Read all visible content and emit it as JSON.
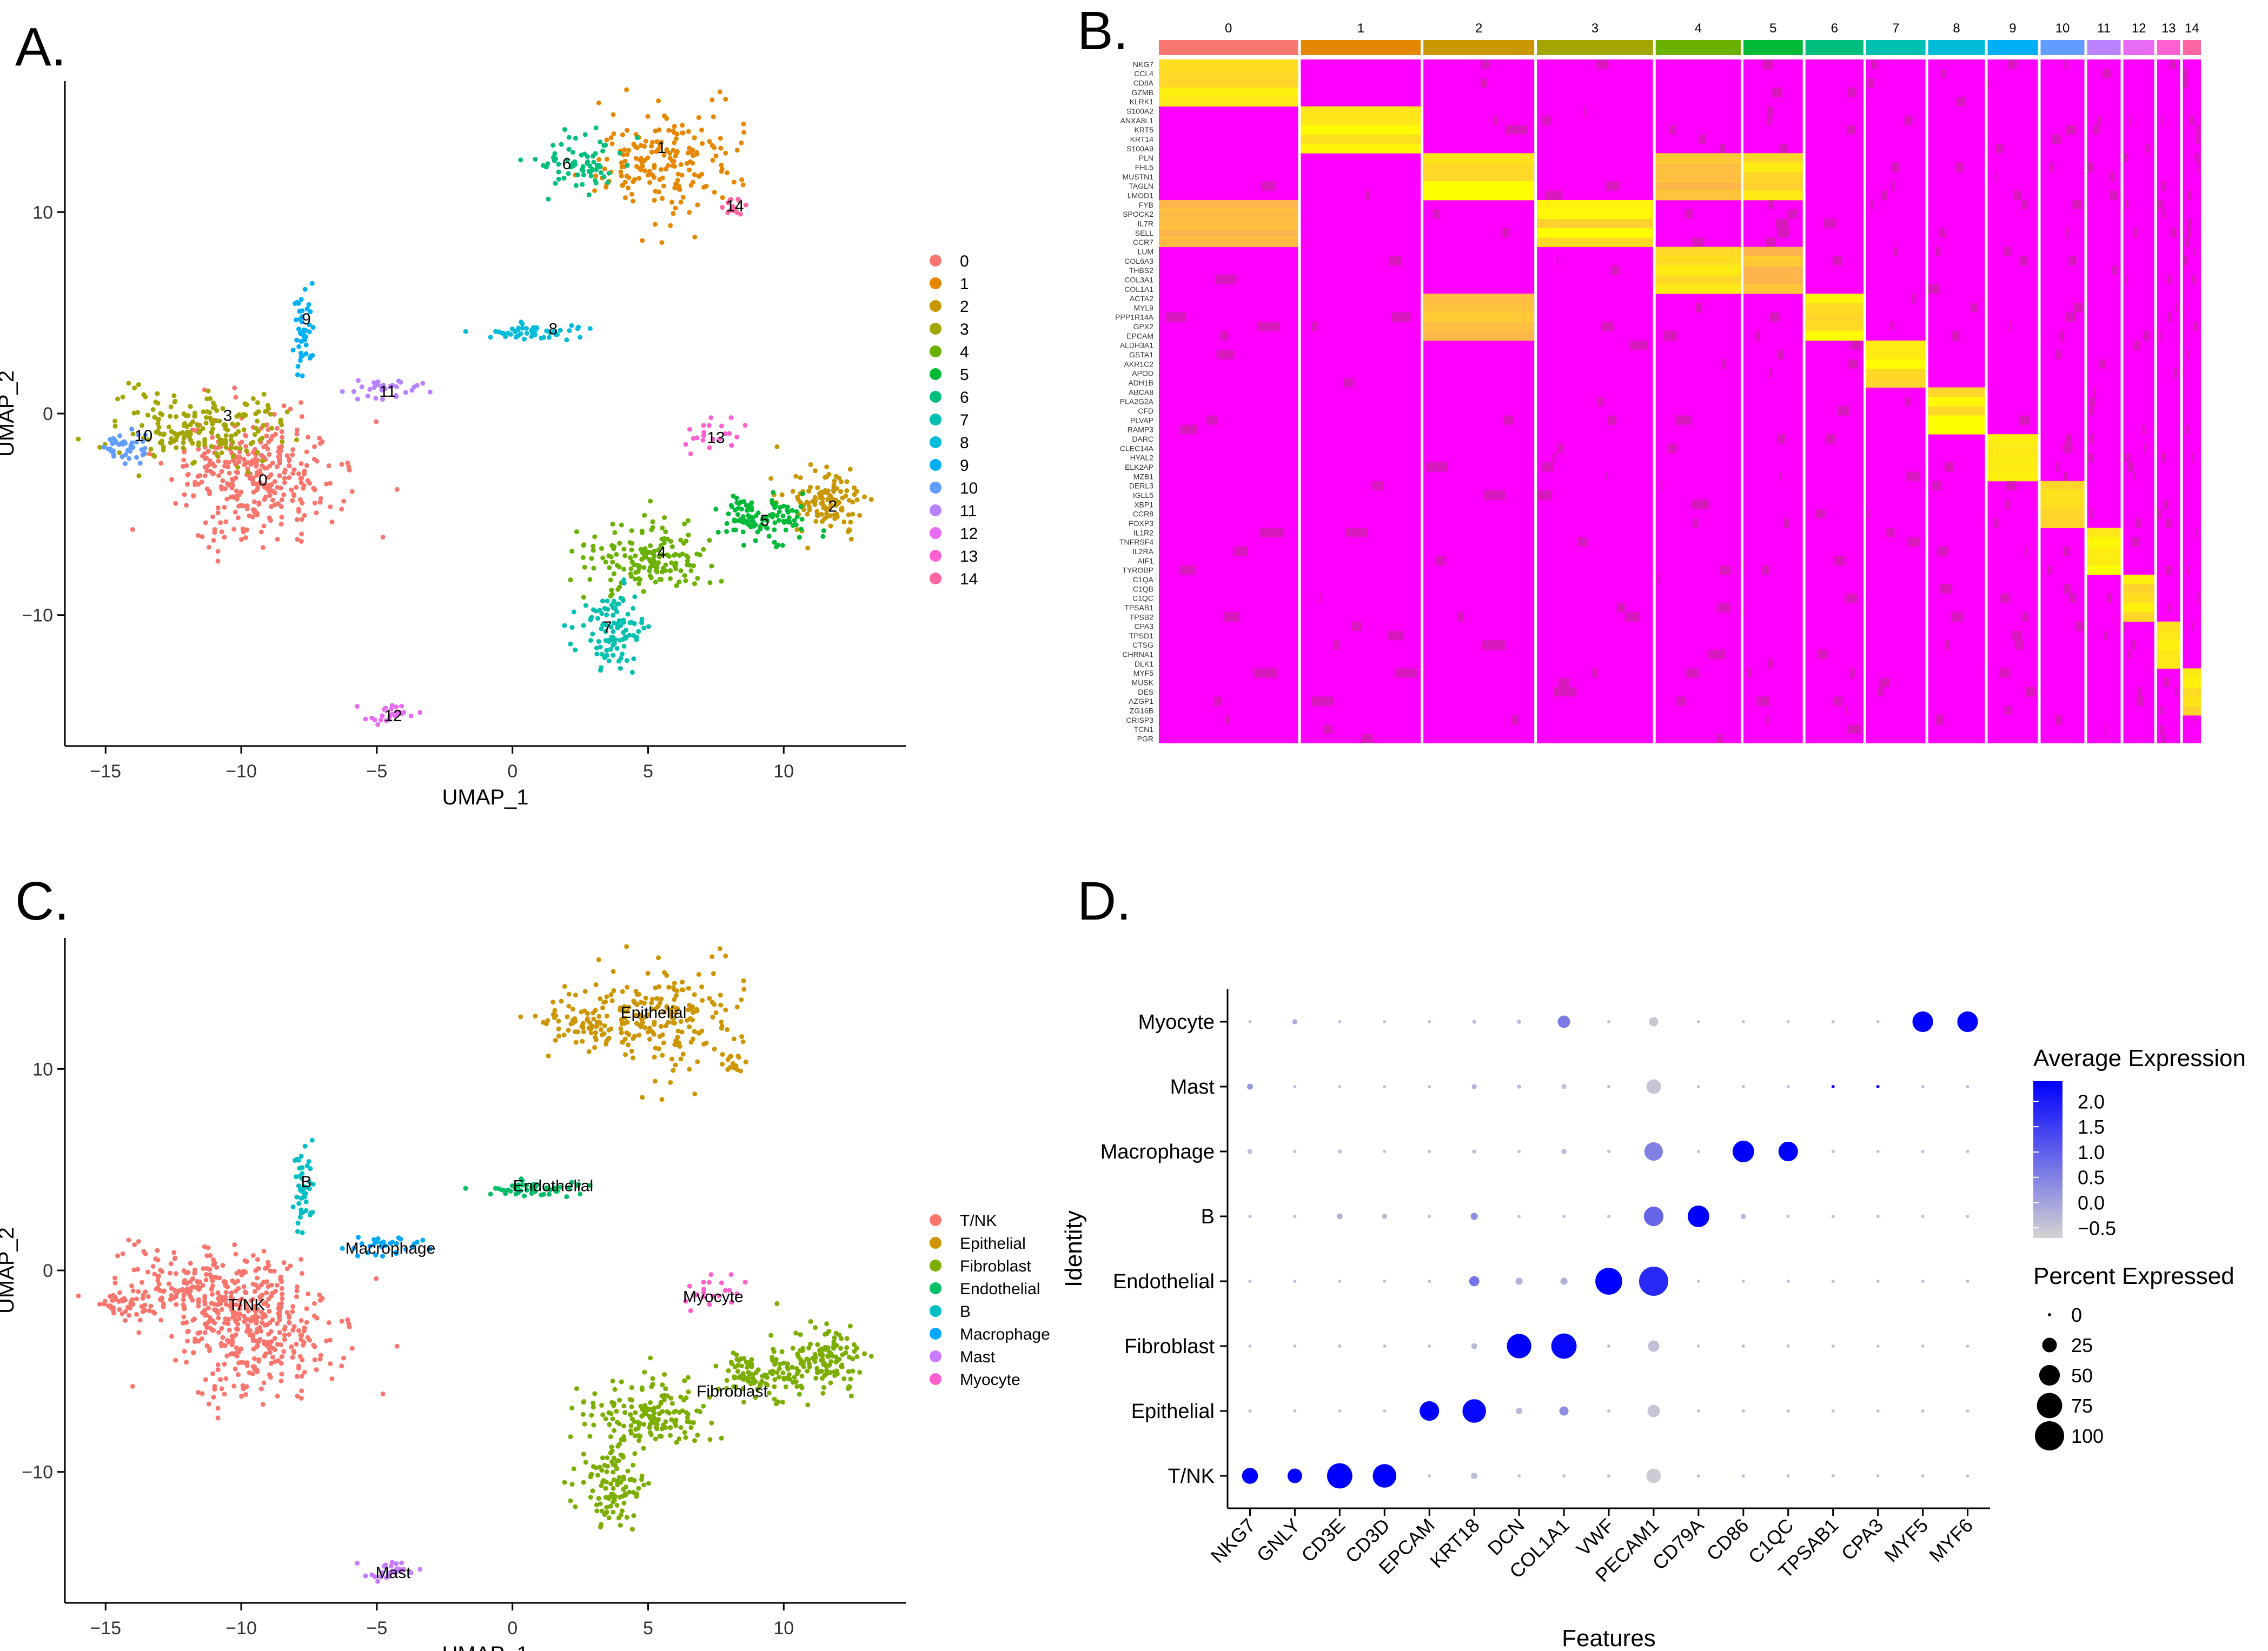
{
  "panel_labels": {
    "a": "A.",
    "b": "B.",
    "c": "C.",
    "d": "D."
  },
  "colors": {
    "clusters": [
      "#F8766D",
      "#E58700",
      "#C99800",
      "#A3A500",
      "#6BB100",
      "#00BA38",
      "#00BF7D",
      "#00C0AF",
      "#00BCD8",
      "#00B0F6",
      "#619CFF",
      "#B983FF",
      "#E76BF3",
      "#FD61D1",
      "#FF67A4"
    ],
    "cell_types": [
      "#F8766D",
      "#CD9600",
      "#7CAE00",
      "#00BE67",
      "#00BFC4",
      "#00A9FF",
      "#C77CFF",
      "#FF61CC"
    ],
    "heatmap_low": "#FF00FF",
    "heatmap_high": "#FFFF00",
    "dot_low": "#D3D3D3",
    "dot_high": "#0000FF"
  },
  "chart_data": [
    {
      "id": "A",
      "type": "scatter",
      "title": "",
      "xlabel": "UMAP_1",
      "ylabel": "UMAP_2",
      "xlim": [
        -16.5,
        14.5
      ],
      "ylim": [
        -16.5,
        16.5
      ],
      "xticks": [
        -15,
        -10,
        -5,
        0,
        5,
        10
      ],
      "yticks": [
        -10,
        0,
        10
      ],
      "legend": {
        "position": "right",
        "labels": [
          "0",
          "1",
          "2",
          "3",
          "4",
          "5",
          "6",
          "7",
          "8",
          "9",
          "10",
          "11",
          "12",
          "13",
          "14"
        ]
      },
      "clusters": [
        {
          "label": "0",
          "center": [
            -9.5,
            -3.2
          ],
          "spread": [
            2.0,
            2.0
          ],
          "n": 340,
          "label_pos": [
            -9.2,
            -3.3
          ]
        },
        {
          "label": "1",
          "center": [
            5.5,
            12.5
          ],
          "spread": [
            1.6,
            1.8
          ],
          "n": 190,
          "label_pos": [
            5.5,
            13.2
          ]
        },
        {
          "label": "2",
          "center": [
            11.5,
            -4.3
          ],
          "spread": [
            1.0,
            1.0
          ],
          "n": 120,
          "label_pos": [
            11.8,
            -4.6
          ]
        },
        {
          "label": "3",
          "center": [
            -11.5,
            -0.7
          ],
          "spread": [
            2.0,
            1.2
          ],
          "n": 190,
          "label_pos": [
            -10.5,
            -0.1
          ]
        },
        {
          "label": "4",
          "center": [
            5.0,
            -7.2
          ],
          "spread": [
            1.6,
            1.2
          ],
          "n": 170,
          "label_pos": [
            5.5,
            -6.9
          ]
        },
        {
          "label": "5",
          "center": [
            9.2,
            -5.2
          ],
          "spread": [
            1.2,
            0.7
          ],
          "n": 110,
          "label_pos": [
            9.3,
            -5.3
          ]
        },
        {
          "label": "6",
          "center": [
            2.5,
            12.4
          ],
          "spread": [
            1.2,
            0.9
          ],
          "n": 70,
          "label_pos": [
            2.0,
            12.4
          ]
        },
        {
          "label": "7",
          "center": [
            3.7,
            -10.7
          ],
          "spread": [
            0.9,
            1.2
          ],
          "n": 100,
          "label_pos": [
            3.5,
            -10.6
          ]
        },
        {
          "label": "8",
          "center": [
            1.2,
            4.1
          ],
          "spread": [
            1.2,
            0.3
          ],
          "n": 50,
          "label_pos": [
            1.5,
            4.2
          ]
        },
        {
          "label": "9",
          "center": [
            -7.7,
            4.2
          ],
          "spread": [
            0.3,
            1.5
          ],
          "n": 45,
          "label_pos": [
            -7.6,
            4.7
          ]
        },
        {
          "label": "10",
          "center": [
            -14.3,
            -1.6
          ],
          "spread": [
            0.5,
            0.6
          ],
          "n": 40,
          "label_pos": [
            -13.6,
            -1.1
          ]
        },
        {
          "label": "11",
          "center": [
            -4.8,
            1.2
          ],
          "spread": [
            1.0,
            0.4
          ],
          "n": 30,
          "label_pos": [
            -4.6,
            1.1
          ]
        },
        {
          "label": "12",
          "center": [
            -4.5,
            -14.9
          ],
          "spread": [
            0.6,
            0.3
          ],
          "n": 25,
          "label_pos": [
            -4.4,
            -15.0
          ]
        },
        {
          "label": "13",
          "center": [
            7.4,
            -1.1
          ],
          "spread": [
            0.8,
            0.6
          ],
          "n": 22,
          "label_pos": [
            7.5,
            -1.2
          ]
        },
        {
          "label": "14",
          "center": [
            8.1,
            10.3
          ],
          "spread": [
            0.3,
            0.3
          ],
          "n": 15,
          "label_pos": [
            8.2,
            10.3
          ]
        }
      ]
    },
    {
      "id": "B",
      "type": "heatmap",
      "title": "",
      "column_groups": [
        "0",
        "1",
        "2",
        "3",
        "4",
        "5",
        "6",
        "7",
        "8",
        "9",
        "10",
        "11",
        "12",
        "13",
        "14"
      ],
      "column_group_widths": [
        10.8,
        9.3,
        8.6,
        9.0,
        6.6,
        4.6,
        4.5,
        4.6,
        4.4,
        3.9,
        3.4,
        2.6,
        2.4,
        1.8,
        1.4
      ],
      "genes": [
        "NKG7",
        "CCL4",
        "CD8A",
        "GZMB",
        "KLRK1",
        "S100A2",
        "ANXA8L1",
        "KRT5",
        "KRT14",
        "S100A9",
        "PLN",
        "FHL5",
        "MUSTN1",
        "TAGLN",
        "LMOD1",
        "FYB",
        "SPOCK2",
        "IL7R",
        "SELL",
        "CCR7",
        "LUM",
        "COL6A3",
        "THBS2",
        "COL3A1",
        "COL1A1",
        "ACTA2",
        "MYL9",
        "PPP1R14A",
        "GPX2",
        "EPCAM",
        "ALDH3A1",
        "GSTA1",
        "AKR1C2",
        "APOD",
        "ADH1B",
        "ABCA8",
        "PLA2G2A",
        "CFD",
        "PLVAP",
        "RAMP3",
        "DARC",
        "CLEC14A",
        "HYAL2",
        "ELK2AP",
        "MZB1",
        "DERL3",
        "IGLL5",
        "XBP1",
        "CCR8",
        "FOXP3",
        "IL1R2",
        "TNFRSF4",
        "IL2RA",
        "AIF1",
        "TYROBP",
        "C1QA",
        "C1QB",
        "C1QC",
        "TPSAB1",
        "TPSB2",
        "CPA3",
        "TPSD1",
        "CTSG",
        "CHRNA1",
        "DLK1",
        "MYF5",
        "MUSK",
        "DES",
        "AZGP1",
        "ZG16B",
        "CRISP3",
        "TCN1",
        "PGR"
      ],
      "gene_block_sizes": [
        5,
        5,
        5,
        5,
        5,
        5,
        5,
        5,
        5,
        5,
        5,
        5,
        5,
        5,
        3
      ],
      "high_blocks_per_group": [
        [
          0,
          3
        ],
        [
          1
        ],
        [
          2,
          5
        ],
        [
          3
        ],
        [
          4,
          2
        ],
        [
          2,
          4
        ],
        [
          5
        ],
        [
          6
        ],
        [
          7
        ],
        [
          8
        ],
        [
          9
        ],
        [
          10
        ],
        [
          11
        ],
        [
          12
        ],
        [
          13
        ]
      ],
      "value_range": [
        -2,
        2
      ]
    },
    {
      "id": "C",
      "type": "scatter",
      "title": "",
      "xlabel": "UMAP_1",
      "ylabel": "UMAP_2",
      "xlim": [
        -16.5,
        14.5
      ],
      "ylim": [
        -16.5,
        16.5
      ],
      "xticks": [
        -15,
        -10,
        -5,
        0,
        5,
        10
      ],
      "yticks": [
        -10,
        0,
        10
      ],
      "legend": {
        "position": "right",
        "labels": [
          "T/NK",
          "Epithelial",
          "Fibroblast",
          "Endothelial",
          "B",
          "Macrophage",
          "Mast",
          "Myocyte"
        ]
      },
      "cell_type_of_cluster": [
        0,
        1,
        2,
        0,
        2,
        2,
        1,
        2,
        3,
        4,
        0,
        5,
        6,
        7,
        1
      ],
      "annotations": [
        {
          "text": "Epithelial",
          "pos": [
            5.2,
            12.8
          ]
        },
        {
          "text": "Endothelial",
          "pos": [
            1.5,
            4.2
          ]
        },
        {
          "text": "B",
          "pos": [
            -7.6,
            4.4
          ]
        },
        {
          "text": "Macrophage",
          "pos": [
            -4.5,
            1.1
          ]
        },
        {
          "text": "T/NK",
          "pos": [
            -9.8,
            -1.7
          ]
        },
        {
          "text": "Myocyte",
          "pos": [
            7.4,
            -1.3
          ]
        },
        {
          "text": "Fibroblast",
          "pos": [
            8.1,
            -6.0
          ]
        },
        {
          "text": "Mast",
          "pos": [
            -4.4,
            -15.0
          ]
        }
      ]
    },
    {
      "id": "D",
      "type": "scatter",
      "subtype": "dot_plot",
      "title": "",
      "xlabel": "Features",
      "ylabel": "Identity",
      "features": [
        "NKG7",
        "GNLY",
        "CD3E",
        "CD3D",
        "EPCAM",
        "KRT18",
        "DCN",
        "COL1A1",
        "VWF",
        "PECAM1",
        "CD79A",
        "CD86",
        "C1QC",
        "TPSAB1",
        "CPA3",
        "MYF5",
        "MYF6"
      ],
      "identities": [
        "Myocyte",
        "Mast",
        "Macrophage",
        "B",
        "Endothelial",
        "Fibroblast",
        "Epithelial",
        "T/NK"
      ],
      "color_legend": {
        "title": "Average Expression",
        "ticks": [
          "2.0",
          "1.5",
          "1.0",
          "0.5",
          "0.0",
          "−0.5"
        ],
        "range": [
          -0.7,
          2.4
        ]
      },
      "size_legend": {
        "title": "Percent Expressed",
        "ticks": [
          "0",
          "25",
          "50",
          "75",
          "100"
        ]
      },
      "avg_expression": [
        [
          -0.4,
          -0.1,
          -0.4,
          -0.4,
          -0.4,
          -0.4,
          -0.3,
          0.6,
          -0.4,
          -0.5,
          -0.4,
          -0.4,
          -0.4,
          -0.4,
          -0.4,
          2.4,
          2.4
        ],
        [
          0.2,
          -0.4,
          -0.4,
          -0.4,
          -0.4,
          -0.2,
          -0.3,
          -0.4,
          -0.3,
          -0.5,
          -0.4,
          -0.4,
          -0.4,
          2.4,
          2.4,
          -0.4,
          -0.4
        ],
        [
          -0.4,
          -0.4,
          -0.4,
          -0.4,
          -0.4,
          -0.4,
          -0.4,
          -0.3,
          -0.4,
          0.5,
          -0.4,
          2.4,
          2.4,
          -0.4,
          -0.4,
          -0.4,
          -0.4
        ],
        [
          -0.4,
          -0.4,
          -0.2,
          -0.3,
          -0.4,
          0.3,
          -0.4,
          -0.4,
          -0.4,
          0.9,
          2.4,
          -0.3,
          -0.4,
          -0.4,
          -0.4,
          -0.4,
          -0.4
        ],
        [
          -0.4,
          -0.4,
          -0.4,
          -0.4,
          -0.4,
          0.7,
          -0.2,
          -0.2,
          2.4,
          1.8,
          -0.4,
          -0.4,
          -0.4,
          -0.4,
          -0.4,
          -0.4,
          -0.4
        ],
        [
          -0.4,
          -0.4,
          -0.4,
          -0.4,
          -0.4,
          -0.3,
          2.4,
          2.3,
          -0.4,
          -0.4,
          -0.4,
          -0.4,
          -0.4,
          -0.4,
          -0.4,
          -0.4,
          -0.4
        ],
        [
          -0.4,
          -0.4,
          -0.4,
          -0.4,
          2.4,
          2.3,
          -0.3,
          0.3,
          -0.4,
          -0.5,
          -0.4,
          -0.4,
          -0.4,
          -0.4,
          -0.4,
          -0.4,
          -0.4
        ],
        [
          2.4,
          2.4,
          2.4,
          2.4,
          -0.4,
          -0.4,
          -0.4,
          -0.4,
          -0.4,
          -0.6,
          -0.4,
          -0.4,
          -0.4,
          -0.4,
          -0.4,
          -0.4,
          -0.4
        ]
      ],
      "pct_expressed": [
        [
          1,
          3,
          1,
          1,
          1,
          2,
          2,
          18,
          1,
          10,
          1,
          1,
          1,
          1,
          1,
          50,
          50
        ],
        [
          4,
          1,
          1,
          1,
          1,
          3,
          2,
          3,
          1,
          25,
          1,
          1,
          1,
          1,
          1,
          1,
          1
        ],
        [
          3,
          1,
          2,
          1,
          1,
          2,
          1,
          3,
          1,
          40,
          1,
          55,
          45,
          1,
          1,
          1,
          1
        ],
        [
          1,
          1,
          4,
          3,
          1,
          6,
          1,
          1,
          1,
          45,
          55,
          3,
          1,
          1,
          1,
          1,
          1
        ],
        [
          1,
          1,
          1,
          1,
          1,
          12,
          6,
          6,
          85,
          100,
          1,
          1,
          1,
          1,
          1,
          1,
          1
        ],
        [
          1,
          1,
          1,
          1,
          1,
          4,
          70,
          75,
          1,
          15,
          1,
          1,
          1,
          1,
          1,
          1,
          1
        ],
        [
          1,
          1,
          1,
          1,
          45,
          65,
          5,
          10,
          1,
          18,
          1,
          1,
          1,
          1,
          1,
          1,
          1
        ],
        [
          30,
          25,
          75,
          65,
          1,
          5,
          1,
          1,
          1,
          25,
          1,
          1,
          1,
          1,
          1,
          1,
          1
        ]
      ]
    }
  ]
}
